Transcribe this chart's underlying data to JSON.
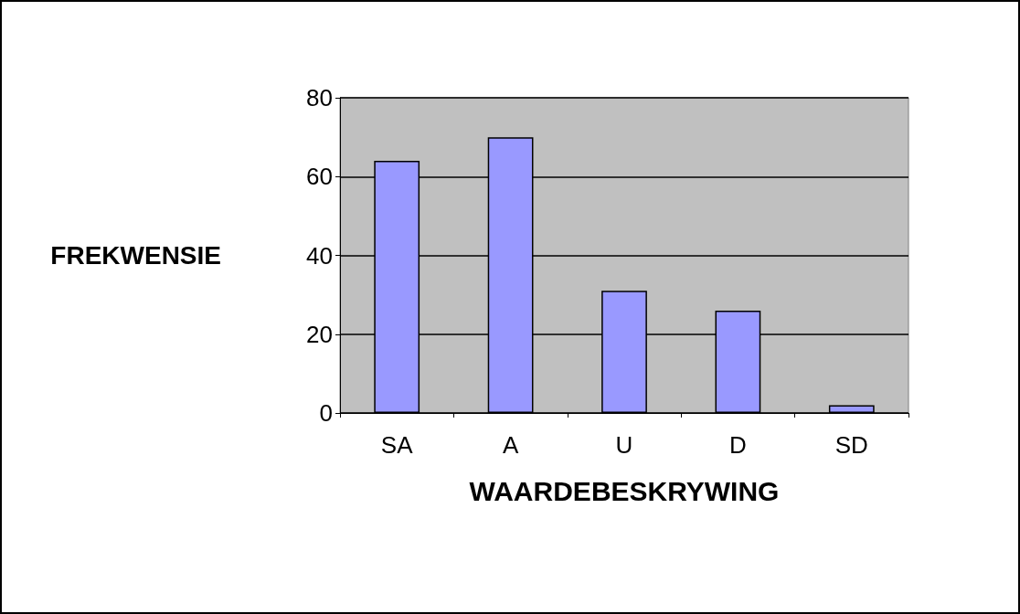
{
  "chart_data": {
    "type": "bar",
    "xlabel": "WAARDEBESKRYWING",
    "ylabel": "FREKWENSIE",
    "categories": [
      "SA",
      "A",
      "U",
      "D",
      "SD"
    ],
    "values": [
      64,
      70,
      31,
      26,
      2
    ],
    "color": "#9999ff",
    "ylim": [
      0,
      80
    ],
    "yticks": [
      0,
      20,
      40,
      60,
      80
    ],
    "grid": "y"
  }
}
